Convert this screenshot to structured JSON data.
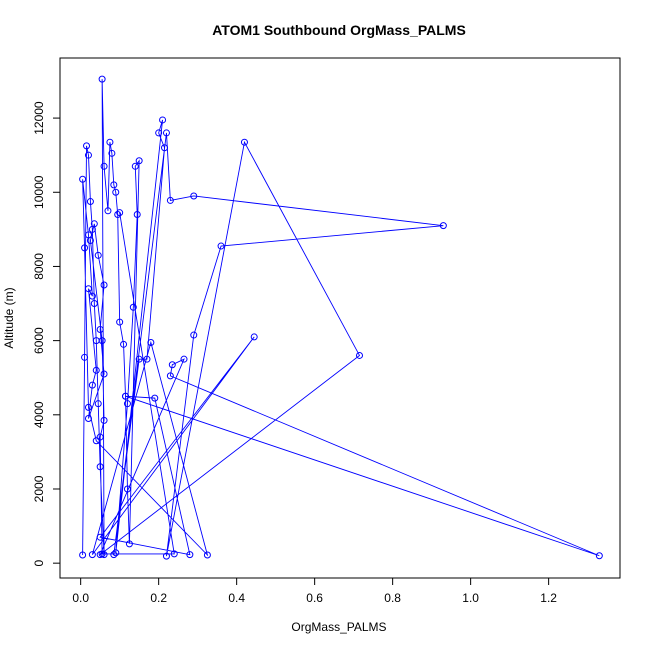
{
  "chart_data": {
    "type": "line",
    "title": "ATOM1 Southbound OrgMass_PALMS",
    "xlabel": "OrgMass_PALMS",
    "ylabel": "Altitude (m)",
    "color": "#0000ff",
    "markers": true,
    "xlim": [
      -0.053,
      1.383
    ],
    "ylim": [
      -400,
      13620
    ],
    "xticks": [
      {
        "value": 0,
        "label": "0.0"
      },
      {
        "value": 0.2,
        "label": "0.2"
      },
      {
        "value": 0.4,
        "label": "0.4"
      },
      {
        "value": 0.6,
        "label": "0.6"
      },
      {
        "value": 0.8,
        "label": "0.8"
      },
      {
        "value": 1.0,
        "label": "1.0"
      },
      {
        "value": 1.2,
        "label": "1.2"
      }
    ],
    "yticks": [
      0,
      2000,
      4000,
      6000,
      8000,
      10000,
      12000
    ],
    "series": [
      {
        "name": "OrgMass_PALMS",
        "x": [
          0.005,
          0.01,
          0.015,
          0.02,
          0.025,
          0.03,
          0.035,
          0.04,
          0.045,
          0.05,
          0.06,
          0.055,
          0.06,
          0.07,
          0.075,
          0.08,
          0.085,
          0.09,
          0.095,
          0.1,
          0.11,
          0.115,
          0.12,
          0.125,
          0.15,
          0.14,
          0.145,
          0.135,
          0.12,
          0.09,
          0.21,
          0.2,
          0.215,
          0.17,
          0.15,
          0.085,
          0.22,
          0.23,
          0.29,
          0.93,
          0.36,
          0.29,
          0.22,
          0.42,
          0.715,
          0.05,
          0.265,
          0.235,
          0.23,
          1.33,
          0.115,
          0.19,
          0.28,
          0.05,
          0.445,
          0.03,
          0.18,
          0.325,
          0.04,
          0.02,
          0.01,
          0.005,
          0.02,
          0.03,
          0.02,
          0.04,
          0.03,
          0.02,
          0.06,
          0.05,
          0.06,
          0.045,
          0.035,
          0.025,
          0.055,
          0.06,
          0.05,
          0.055,
          0.24,
          0.1
        ],
        "values": [
          220,
          5550,
          11250,
          11000,
          9750,
          9000,
          7000,
          6000,
          4300,
          2600,
          230,
          13050,
          10700,
          9500,
          11350,
          11050,
          10200,
          10000,
          9400,
          6500,
          5900,
          4500,
          2000,
          520,
          10850,
          10700,
          9400,
          6900,
          4300,
          280,
          11950,
          11600,
          11200,
          5500,
          5500,
          230,
          11600,
          9780,
          9900,
          9100,
          8550,
          6150,
          190,
          11350,
          5600,
          230,
          5500,
          5350,
          5050,
          200,
          4500,
          4450,
          230,
          700,
          6100,
          230,
          5950,
          220,
          3300,
          4200,
          8500,
          10350,
          8850,
          7200,
          7400,
          5200,
          4800,
          3900,
          5100,
          6300,
          7500,
          8300,
          9150,
          8700,
          6000,
          3850,
          3400,
          250,
          250,
          9450
        ]
      }
    ]
  }
}
